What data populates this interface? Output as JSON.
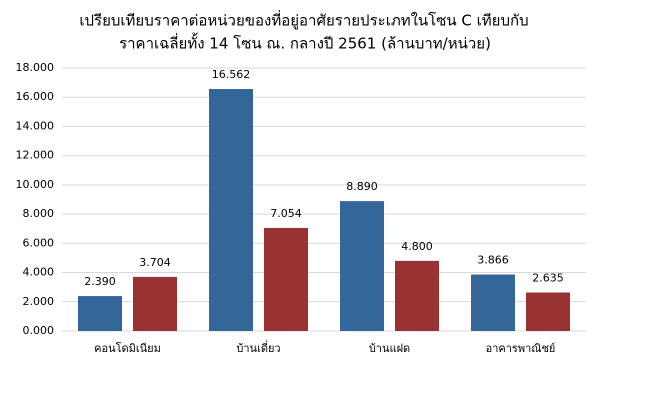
{
  "chart_data": {
    "type": "bar",
    "title": [
      "เปรียบเทียบราคาต่อหน่วยของที่อยู่อาศัยรายประเภทในโซน C เทียบกับ",
      "ราคาเฉลี่ยทั้ง 14 โซน ณ. กลางปี 2561 (ล้านบาท/หน่วย)"
    ],
    "categories": [
      "คอนโดมิเนียม",
      "บ้านเดี่ยว",
      "บ้านแฝด",
      "อาคารพาณิชย์"
    ],
    "series": [
      {
        "color": "#336699",
        "values": [
          2.39,
          16.562,
          8.89,
          3.866
        ],
        "value_labels": [
          "2.390",
          "16.562",
          "8.890",
          "3.866"
        ]
      },
      {
        "color": "#993333",
        "values": [
          3.704,
          7.054,
          4.8,
          2.635
        ],
        "value_labels": [
          "3.704",
          "7.054",
          "4.800",
          "2.635"
        ]
      }
    ],
    "ylim": [
      0,
      18
    ],
    "yticks": [
      {
        "value": 0,
        "label": "0.000"
      },
      {
        "value": 2,
        "label": "2.000"
      },
      {
        "value": 4,
        "label": "4.000"
      },
      {
        "value": 6,
        "label": "6.000"
      },
      {
        "value": 8,
        "label": "8.000"
      },
      {
        "value": 10,
        "label": "10.000"
      },
      {
        "value": 12,
        "label": "12.000"
      },
      {
        "value": 14,
        "label": "14.000"
      },
      {
        "value": 16,
        "label": "16.000"
      },
      {
        "value": 18,
        "label": "18.000"
      }
    ],
    "grid": true
  }
}
